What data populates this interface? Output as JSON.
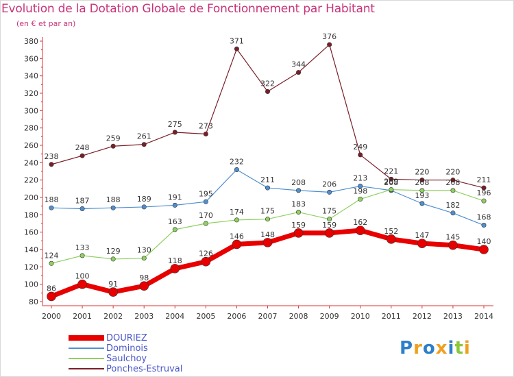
{
  "title": "Evolution de la Dotation Globale de Fonctionnement par Habitant",
  "subtitle": "(en € et par an)",
  "logo": {
    "text": "Proxiti",
    "letters": [
      {
        "ch": "P",
        "color": "#2e7ec8"
      },
      {
        "ch": "r",
        "color": "#f0a020"
      },
      {
        "ch": "o",
        "color": "#2e7ec8"
      },
      {
        "ch": "x",
        "color": "#f0a020"
      },
      {
        "ch": "i",
        "color": "#2e7ec8"
      },
      {
        "ch": "t",
        "color": "#8ac83a"
      },
      {
        "ch": "i",
        "color": "#f0a020"
      }
    ]
  },
  "chart_data": {
    "type": "line",
    "title": "Evolution de la Dotation Globale de Fonctionnement par Habitant",
    "subtitle": "(en € et par an)",
    "x": [
      2000,
      2001,
      2002,
      2003,
      2004,
      2005,
      2006,
      2007,
      2008,
      2009,
      2010,
      2011,
      2012,
      2013,
      2014
    ],
    "ylim": [
      80,
      380
    ],
    "yticks": [
      80,
      100,
      120,
      140,
      160,
      180,
      200,
      220,
      240,
      260,
      280,
      300,
      320,
      340,
      360,
      380
    ],
    "grid": false,
    "legend_position": "bottom-left",
    "series": [
      {
        "name": "Ponches-Estruval",
        "color": "#7a1e28",
        "values": [
          238,
          248,
          259,
          261,
          275,
          273,
          371,
          322,
          344,
          376,
          249,
          221,
          220,
          220,
          211
        ]
      },
      {
        "name": "Dominois",
        "color": "#4f8fd0",
        "values": [
          188,
          187,
          188,
          189,
          191,
          195,
          232,
          211,
          208,
          206,
          213,
          208,
          193,
          182,
          168
        ]
      },
      {
        "name": "Saulchoy",
        "color": "#8fd060",
        "values": [
          124,
          133,
          129,
          130,
          163,
          170,
          174,
          175,
          183,
          175,
          198,
          209,
          208,
          208,
          196
        ]
      },
      {
        "name": "DOURIEZ",
        "color": "#e80000",
        "values": [
          86,
          100,
          91,
          98,
          118,
          126,
          146,
          148,
          159,
          159,
          162,
          152,
          147,
          145,
          140
        ]
      }
    ],
    "legend_order": [
      "DOURIEZ",
      "Dominois",
      "Saulchoy",
      "Ponches-Estruval"
    ]
  }
}
